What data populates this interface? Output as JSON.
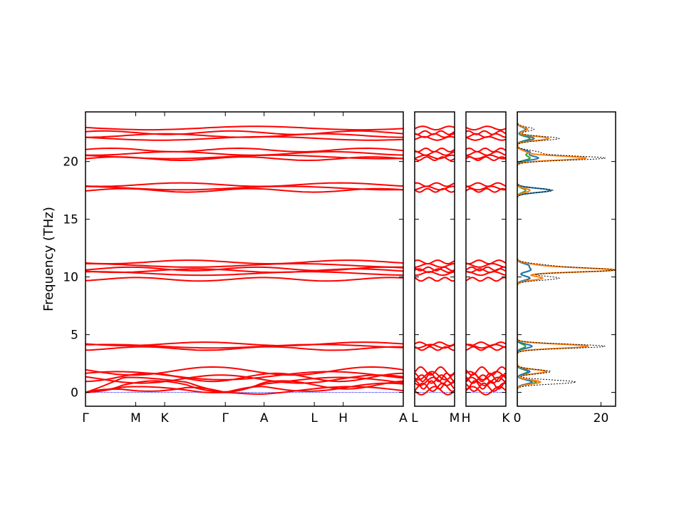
{
  "chart_data": {
    "type": "line",
    "ylabel": "Frequency (THz)",
    "ylim": [
      -1.2,
      24.3
    ],
    "yticks": [
      0,
      5,
      10,
      15,
      20
    ],
    "colors": {
      "bands": "#ff0000",
      "zero_line": "#0000ff",
      "dos_total": "#000000",
      "dos_blue": "#1f77b4",
      "dos_orange": "#ff7f0e",
      "dos_green": "#2ca02c"
    },
    "band_levels": [
      0.15,
      0.45,
      0.65,
      0.95,
      1.15,
      1.3,
      1.45,
      1.85,
      3.8,
      4.0,
      4.2,
      9.8,
      10.3,
      10.55,
      10.7,
      11.0,
      11.3,
      17.5,
      17.7,
      18.0,
      20.25,
      20.4,
      20.7,
      21.0,
      22.0,
      22.25,
      22.5,
      22.9
    ],
    "panels": [
      {
        "kind": "bands",
        "xticks": [
          {
            "label": "Γ",
            "pos": 0.0
          },
          {
            "label": "M",
            "pos": 0.158
          },
          {
            "label": "K",
            "pos": 0.249
          },
          {
            "label": "Γ",
            "pos": 0.44
          },
          {
            "label": "A",
            "pos": 0.562
          },
          {
            "label": "L",
            "pos": 0.72
          },
          {
            "label": "H",
            "pos": 0.811
          },
          {
            "label": "A",
            "pos": 1.0
          }
        ]
      },
      {
        "kind": "bands",
        "xticks": [
          {
            "label": "L",
            "pos": 0.0
          },
          {
            "label": "M",
            "pos": 1.0
          }
        ]
      },
      {
        "kind": "bands",
        "xticks": [
          {
            "label": "H",
            "pos": 0.0
          },
          {
            "label": "K",
            "pos": 1.0
          }
        ]
      },
      {
        "kind": "dos",
        "xlim": [
          0,
          23.5
        ],
        "xticks": [
          {
            "label": "0",
            "value": 0
          },
          {
            "label": "20",
            "value": 20
          }
        ],
        "peaks": [
          {
            "freq": 0.9,
            "total": 14.0,
            "blue": 3.5,
            "orange": 5.5,
            "green": 4.5
          },
          {
            "freq": 1.8,
            "total": 8.0,
            "blue": 3.0,
            "orange": 7.0,
            "green": 2.5
          },
          {
            "freq": 4.0,
            "total": 21.0,
            "blue": 3.5,
            "orange": 17.0,
            "green": 2.0
          },
          {
            "freq": 9.9,
            "total": 10.0,
            "blue": 3.0,
            "orange": 6.0,
            "green": 3.0
          },
          {
            "freq": 10.6,
            "total": 23.0,
            "blue": 3.0,
            "orange": 23.0,
            "green": 3.0
          },
          {
            "freq": 11.0,
            "total": 6.0,
            "blue": 2.5,
            "orange": 4.0,
            "green": 2.5
          },
          {
            "freq": 17.5,
            "total": 8.5,
            "blue": 8.0,
            "orange": 3.0,
            "green": 2.0
          },
          {
            "freq": 20.3,
            "total": 21.0,
            "blue": 5.0,
            "orange": 16.5,
            "green": 3.0
          },
          {
            "freq": 20.8,
            "total": 5.0,
            "blue": 3.0,
            "orange": 2.0,
            "green": 2.5
          },
          {
            "freq": 22.0,
            "total": 10.0,
            "blue": 4.0,
            "orange": 7.5,
            "green": 3.0
          },
          {
            "freq": 22.8,
            "total": 4.0,
            "blue": 2.0,
            "orange": 2.5,
            "green": 2.0
          }
        ]
      }
    ]
  }
}
